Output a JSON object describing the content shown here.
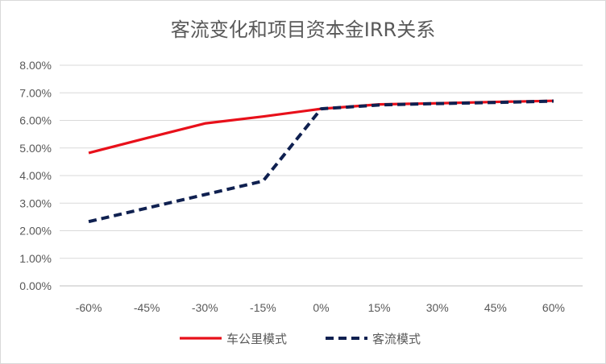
{
  "chart_data": {
    "type": "line",
    "title": "客流变化和项目资本金IRR关系",
    "xlabel": "",
    "ylabel": "",
    "categories": [
      "-60%",
      "-45%",
      "-30%",
      "-15%",
      "0%",
      "15%",
      "30%",
      "45%",
      "60%"
    ],
    "y_ticks": [
      "0.00%",
      "1.00%",
      "2.00%",
      "3.00%",
      "4.00%",
      "5.00%",
      "6.00%",
      "7.00%",
      "8.00%"
    ],
    "ylim": [
      0,
      8
    ],
    "grid": true,
    "legend_position": "bottom",
    "series": [
      {
        "name": "车公里模式",
        "values": [
          4.82,
          5.36,
          5.89,
          6.14,
          6.42,
          6.58,
          6.62,
          6.67,
          6.71
        ],
        "color": "#e8101a",
        "style": "solid"
      },
      {
        "name": "客流模式",
        "values": [
          2.33,
          2.82,
          3.31,
          3.8,
          6.42,
          6.56,
          6.61,
          6.65,
          6.7
        ],
        "color": "#0f2050",
        "style": "dashed"
      }
    ]
  }
}
